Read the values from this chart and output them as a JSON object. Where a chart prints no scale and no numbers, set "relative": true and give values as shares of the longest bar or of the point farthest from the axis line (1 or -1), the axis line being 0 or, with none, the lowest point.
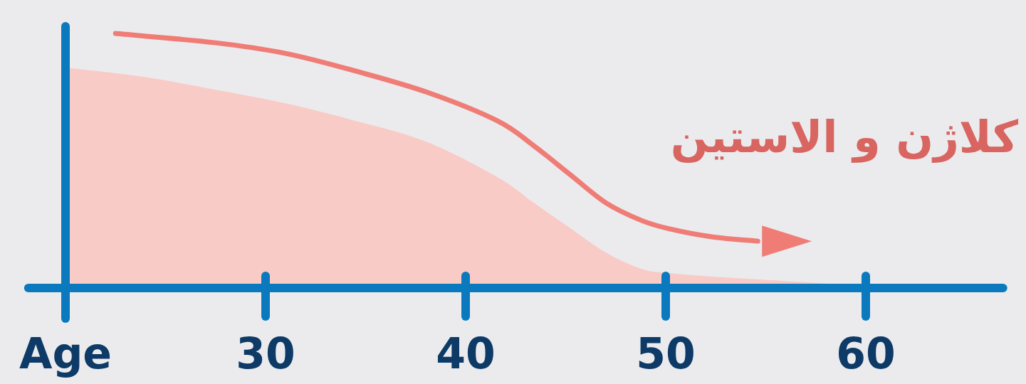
{
  "chart_data": {
    "type": "area",
    "relative": true,
    "x": [
      20,
      23.84,
      27.4,
      30.96,
      34.52,
      38.08,
      41.64,
      43.4,
      45.2,
      47.0,
      48.8,
      50,
      52.3,
      55.9,
      60
    ],
    "xlim": [
      18,
      67
    ],
    "xticks": [
      {
        "value": 20,
        "label": "Age"
      },
      30,
      40,
      50,
      60
    ],
    "series": [
      {
        "type": "area",
        "color": "#f9cbc6",
        "values": [
          0.866,
          0.83,
          0.78,
          0.726,
          0.656,
          0.573,
          0.433,
          0.335,
          0.237,
          0.14,
          0.075,
          0.06,
          0.045,
          0.028,
          0.008
        ]
      },
      {
        "type": "line",
        "name": "کلاژن و الاستین",
        "color": "#f07c76",
        "line_style": "solid",
        "x": [
          22.5,
          27.4,
          30.96,
          34.5,
          38.1,
          41.6,
          43.4,
          45.2,
          47,
          48.8,
          50.2,
          52.3,
          54.6
        ],
        "values": [
          1.0,
          0.964,
          0.922,
          0.852,
          0.768,
          0.656,
          0.559,
          0.447,
          0.335,
          0.265,
          0.232,
          0.201,
          0.184
        ]
      }
    ],
    "ref_lines": [
      {
        "axis": "x",
        "value": 20,
        "color": "#0a79be"
      }
    ],
    "grid": false,
    "legend": false,
    "marker": "none"
  }
}
